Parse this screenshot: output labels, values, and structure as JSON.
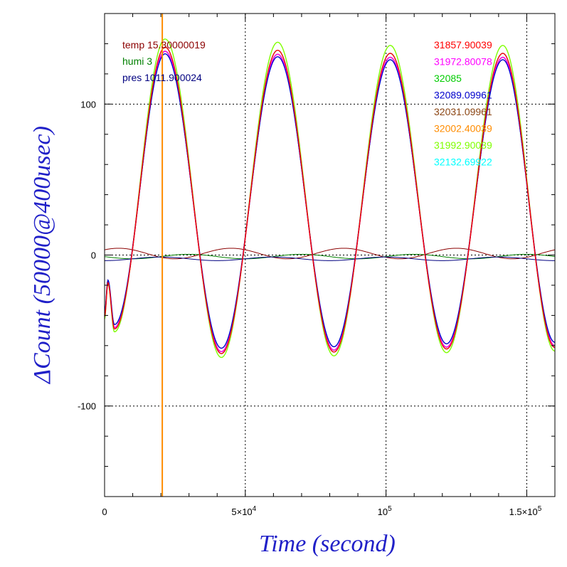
{
  "chart_data": {
    "type": "line",
    "xlabel": "Time (second)",
    "ylabel": "ΔCount (50000@400usec)",
    "xlim": [
      0,
      160000
    ],
    "ylim": [
      -160,
      160
    ],
    "x_ticks": [
      {
        "value": 0,
        "label": "0",
        "sup": ""
      },
      {
        "value": 50000,
        "label": "5×10",
        "sup": "4"
      },
      {
        "value": 100000,
        "label": "10",
        "sup": "5"
      },
      {
        "value": 150000,
        "label": "1.5×10",
        "sup": "5"
      }
    ],
    "y_ticks": [
      {
        "value": 100,
        "label": "100"
      },
      {
        "value": 0,
        "label": "0"
      },
      {
        "value": -100,
        "label": "-100"
      }
    ],
    "grid": true,
    "marker_line": {
      "x": 20500,
      "color": "#ff8c00"
    },
    "legend_left": [
      {
        "text": "temp 15.30000019",
        "color": "#8b0000"
      },
      {
        "text": "humi 3",
        "color": "#008000"
      },
      {
        "text": "pres 1011.900024",
        "color": "#000080"
      }
    ],
    "series": [
      {
        "name": "31857.90039",
        "color": "#ff0000",
        "amp": 1.02,
        "offset": 0
      },
      {
        "name": "31972.80078",
        "color": "#ff00ff",
        "amp": 1.0,
        "offset": 0
      },
      {
        "name": "32085",
        "color": "#00cc00",
        "amp": 1.0,
        "offset": 0
      },
      {
        "name": "32089.09961",
        "color": "#0000cc",
        "amp": 0.98,
        "offset": 1
      },
      {
        "name": "32031.09961",
        "color": "#8b4513",
        "amp": 1.0,
        "offset": 0
      },
      {
        "name": "32002.40039",
        "color": "#ff8c00",
        "amp": 1.0,
        "offset": 0
      },
      {
        "name": "31992.90039",
        "color": "#7fff00",
        "amp": 1.06,
        "offset": 0
      },
      {
        "name": "32132.69922",
        "color": "#00ffff",
        "amp": 1.02,
        "offset": 0
      }
    ],
    "main_wave": {
      "peaks": [
        {
          "x": 21500,
          "y": 135
        },
        {
          "x": 61500,
          "y": 133
        },
        {
          "x": 101500,
          "y": 131
        },
        {
          "x": 141500,
          "y": 131
        }
      ],
      "troughs": [
        {
          "x": 41500,
          "y": -64
        },
        {
          "x": 81500,
          "y": -63
        },
        {
          "x": 121500,
          "y": -61
        }
      ],
      "start": [
        {
          "x": 0,
          "y": -40
        },
        {
          "x": 1200,
          "y": -18
        },
        {
          "x": 3500,
          "y": -48
        }
      ],
      "end": {
        "x": 160000,
        "y": -60
      }
    },
    "env_series": [
      {
        "name": "temp",
        "color": "#8b0000",
        "base": 1,
        "amp": 3.5,
        "period": 40000,
        "phase": 45000
      },
      {
        "name": "humi",
        "color": "#008000",
        "base": -1,
        "amp": 1.5,
        "period": 40000,
        "phase": 30000
      },
      {
        "name": "pres",
        "color": "#000080",
        "base": -2.5,
        "amp": 1.2,
        "period": 40000,
        "phase": 20000
      }
    ]
  }
}
